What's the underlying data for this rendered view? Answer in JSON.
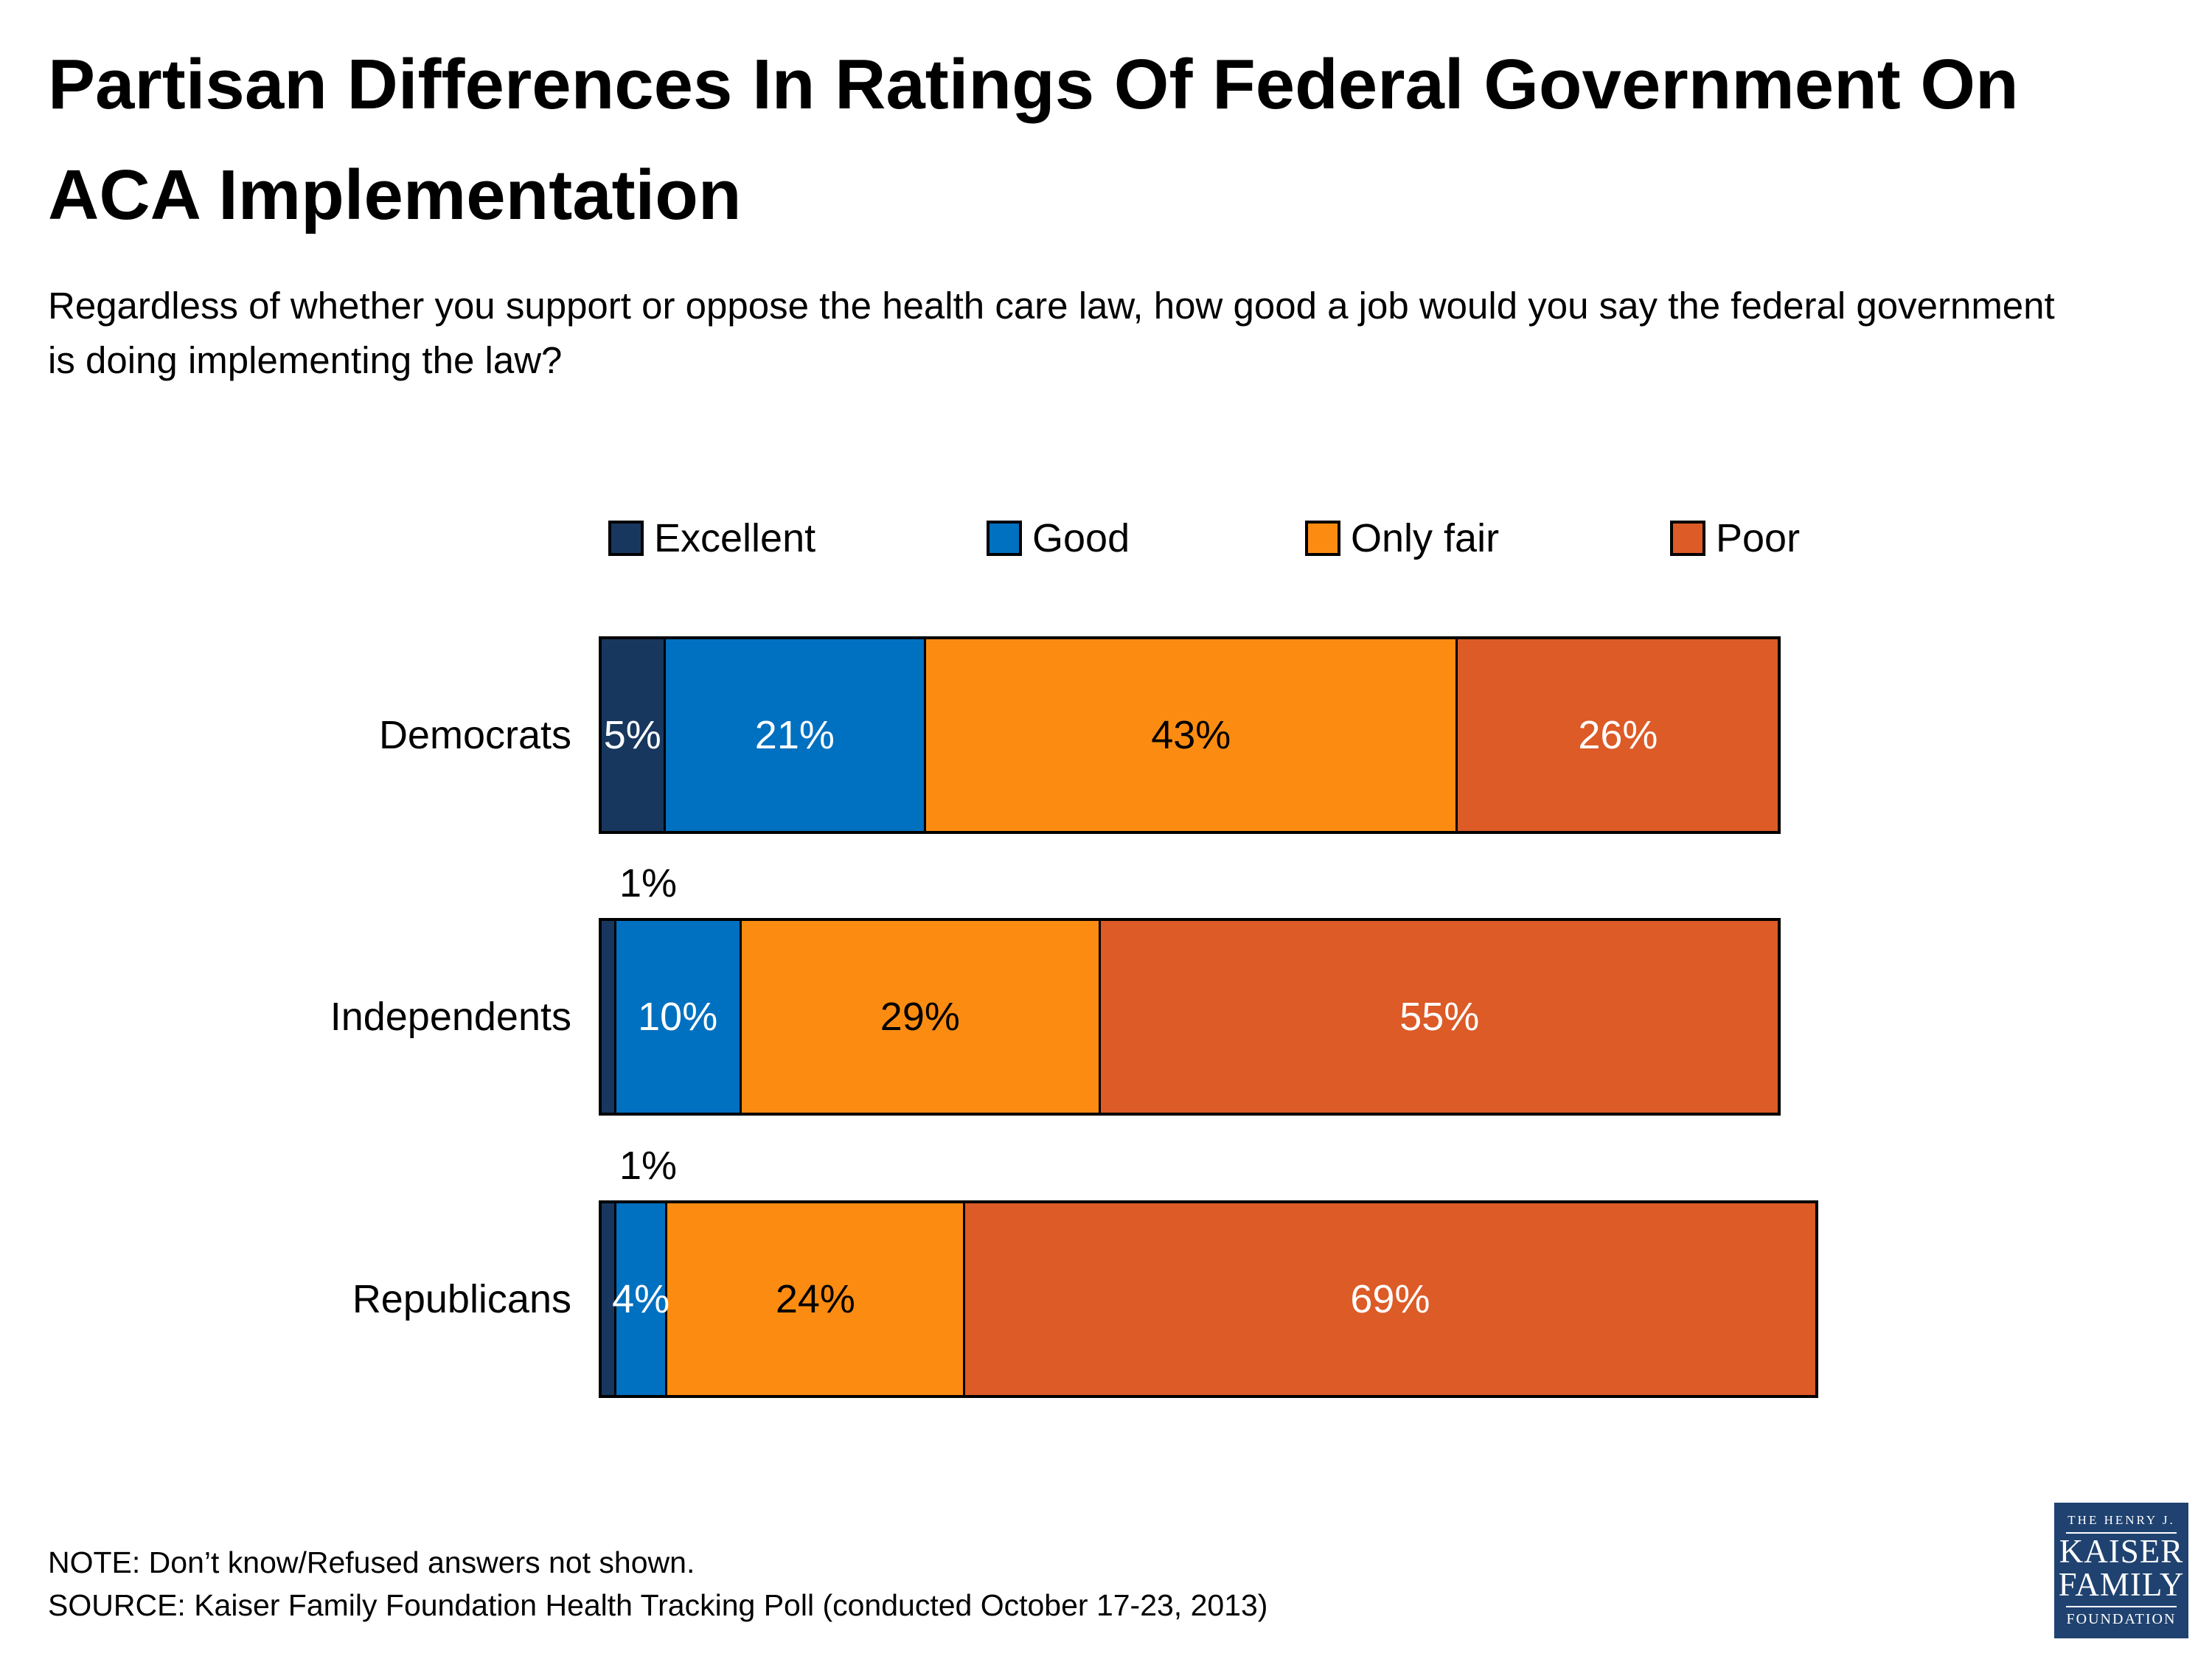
{
  "title": {
    "line1": "Partisan Differences In Ratings Of Federal Government On",
    "line2": "ACA Implementation"
  },
  "subtitle": {
    "line1": "Regardless of whether you support or oppose the health care law, how good a job would you say the federal government",
    "line2": "is doing implementing the law?"
  },
  "chart_data": {
    "type": "bar",
    "orientation": "horizontal",
    "stacked": true,
    "unit": "percent",
    "value_suffix": "%",
    "xlim": [
      0,
      100
    ],
    "grid": false,
    "legend_position": "top",
    "categories": [
      "Democrats",
      "Independents",
      "Republicans"
    ],
    "series": [
      {
        "name": "Excellent",
        "color": "#17375E",
        "label_color": "#FFFFFF",
        "values": [
          5,
          1,
          1
        ]
      },
      {
        "name": "Good",
        "color": "#0070C0",
        "label_color": "#FFFFFF",
        "values": [
          21,
          10,
          4
        ]
      },
      {
        "name": "Only fair",
        "color": "#FB8C11",
        "label_color": "#000000",
        "values": [
          43,
          29,
          24
        ]
      },
      {
        "name": "Poor",
        "color": "#DC5B27",
        "label_color": "#FFFFFF",
        "values": [
          26,
          55,
          69
        ]
      }
    ],
    "data_labels": [
      "5%",
      "21%",
      "43%",
      "26%",
      "1%",
      "10%",
      "29%",
      "55%",
      "1%",
      "4%",
      "24%",
      "69%"
    ]
  },
  "legend": {
    "items": [
      "Excellent",
      "Good",
      "Only fair",
      "Poor"
    ]
  },
  "note": "NOTE: Don’t know/Refused answers not shown.",
  "source": "SOURCE: Kaiser Family Foundation Health Tracking Poll (conducted October 17-23, 2013)",
  "logo": {
    "top": "THE HENRY J.",
    "name_line1": "KAISER",
    "name_line2": "FAMILY",
    "bottom": "FOUNDATION",
    "background": "#1F4270"
  }
}
